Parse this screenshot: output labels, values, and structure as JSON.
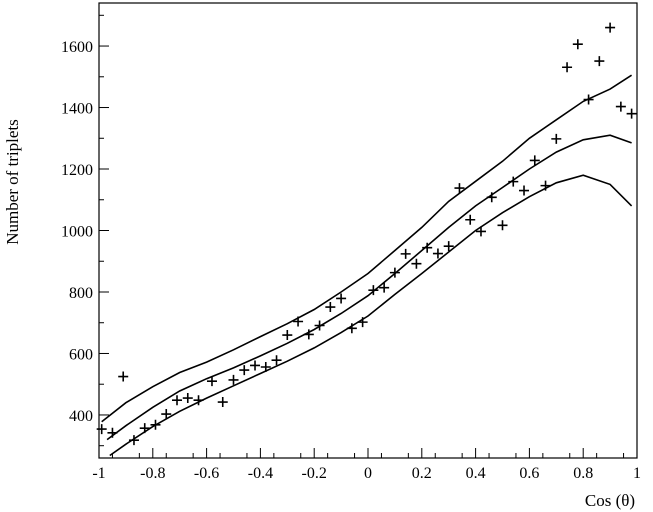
{
  "chart_data": {
    "type": "scatter",
    "title": "",
    "xlabel": "Cos (θ)",
    "ylabel": "Number of triplets",
    "xlim": [
      -1,
      1
    ],
    "ylim": [
      260,
      1740
    ],
    "x_ticks": [
      -1,
      -0.8,
      -0.6,
      -0.4,
      -0.2,
      0,
      0.2,
      0.4,
      0.6,
      0.8,
      1
    ],
    "x_tick_labels": [
      "-1",
      "-0.8",
      "-0.6",
      "-0.4",
      "-0.2",
      "0",
      "0.2",
      "0.4",
      "0.6",
      "0.8",
      "1"
    ],
    "y_ticks": [
      400,
      600,
      800,
      1000,
      1200,
      1400,
      1600
    ],
    "y_tick_labels": [
      "400",
      "600",
      "800",
      "1000",
      "1200",
      "1400",
      "1600"
    ],
    "grid": false,
    "legend": "none",
    "series": [
      {
        "marker": "+",
        "points": [
          [
            -0.99,
            354
          ],
          [
            -0.95,
            342
          ],
          [
            -0.91,
            525
          ],
          [
            -0.87,
            318
          ],
          [
            -0.83,
            357
          ],
          [
            -0.79,
            368
          ],
          [
            -0.75,
            403
          ],
          [
            -0.71,
            448
          ],
          [
            -0.67,
            455
          ],
          [
            -0.63,
            448
          ],
          [
            -0.58,
            510
          ],
          [
            -0.54,
            442
          ],
          [
            -0.5,
            514
          ],
          [
            -0.46,
            546
          ],
          [
            -0.42,
            561
          ],
          [
            -0.38,
            556
          ],
          [
            -0.34,
            578
          ],
          [
            -0.3,
            660
          ],
          [
            -0.26,
            704
          ],
          [
            -0.22,
            662
          ],
          [
            -0.18,
            691
          ],
          [
            -0.14,
            751
          ],
          [
            -0.1,
            779
          ],
          [
            -0.06,
            682
          ],
          [
            -0.02,
            702
          ],
          [
            0.02,
            806
          ],
          [
            0.06,
            814
          ],
          [
            0.1,
            863
          ],
          [
            0.14,
            924
          ],
          [
            0.18,
            892
          ],
          [
            0.22,
            944
          ],
          [
            0.26,
            925
          ],
          [
            0.3,
            949
          ],
          [
            0.34,
            1138
          ],
          [
            0.38,
            1035
          ],
          [
            0.42,
            997
          ],
          [
            0.46,
            1108
          ],
          [
            0.5,
            1017
          ],
          [
            0.54,
            1159
          ],
          [
            0.58,
            1130
          ],
          [
            0.62,
            1228
          ],
          [
            0.66,
            1146
          ],
          [
            0.7,
            1298
          ],
          [
            0.74,
            1531
          ],
          [
            0.78,
            1606
          ],
          [
            0.82,
            1426
          ],
          [
            0.86,
            1551
          ],
          [
            0.9,
            1660
          ],
          [
            0.94,
            1403
          ],
          [
            0.98,
            1380
          ]
        ]
      },
      {
        "type": "line",
        "points": [
          [
            -0.99,
            378
          ],
          [
            -0.9,
            440
          ],
          [
            -0.8,
            492
          ],
          [
            -0.7,
            538
          ],
          [
            -0.6,
            572
          ],
          [
            -0.5,
            612
          ],
          [
            -0.4,
            655
          ],
          [
            -0.3,
            697
          ],
          [
            -0.2,
            743
          ],
          [
            -0.1,
            800
          ],
          [
            0,
            860
          ],
          [
            0.1,
            935
          ],
          [
            0.2,
            1010
          ],
          [
            0.3,
            1095
          ],
          [
            0.4,
            1160
          ],
          [
            0.5,
            1225
          ],
          [
            0.6,
            1300
          ],
          [
            0.7,
            1360
          ],
          [
            0.8,
            1420
          ],
          [
            0.9,
            1460
          ],
          [
            0.98,
            1505
          ]
        ]
      },
      {
        "type": "line",
        "points": [
          [
            -0.97,
            320
          ],
          [
            -0.9,
            365
          ],
          [
            -0.8,
            425
          ],
          [
            -0.7,
            478
          ],
          [
            -0.6,
            518
          ],
          [
            -0.5,
            553
          ],
          [
            -0.4,
            592
          ],
          [
            -0.3,
            633
          ],
          [
            -0.2,
            678
          ],
          [
            -0.1,
            730
          ],
          [
            0,
            788
          ],
          [
            0.1,
            860
          ],
          [
            0.2,
            935
          ],
          [
            0.3,
            1010
          ],
          [
            0.4,
            1080
          ],
          [
            0.5,
            1140
          ],
          [
            0.6,
            1200
          ],
          [
            0.7,
            1255
          ],
          [
            0.8,
            1295
          ],
          [
            0.9,
            1310
          ],
          [
            0.98,
            1285
          ]
        ]
      },
      {
        "type": "line",
        "points": [
          [
            -0.96,
            268
          ],
          [
            -0.9,
            305
          ],
          [
            -0.8,
            362
          ],
          [
            -0.7,
            412
          ],
          [
            -0.6,
            455
          ],
          [
            -0.5,
            495
          ],
          [
            -0.4,
            535
          ],
          [
            -0.3,
            575
          ],
          [
            -0.2,
            618
          ],
          [
            -0.1,
            668
          ],
          [
            0,
            722
          ],
          [
            0.1,
            792
          ],
          [
            0.2,
            860
          ],
          [
            0.3,
            930
          ],
          [
            0.4,
            1000
          ],
          [
            0.5,
            1058
          ],
          [
            0.6,
            1110
          ],
          [
            0.7,
            1155
          ],
          [
            0.8,
            1180
          ],
          [
            0.9,
            1150
          ],
          [
            0.98,
            1080
          ]
        ]
      }
    ]
  }
}
